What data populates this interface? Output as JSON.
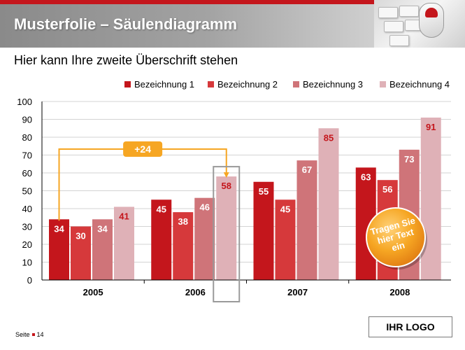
{
  "slide": {
    "title": "Musterfolie – Säulendiagramm",
    "subtitle": "Hier kann Ihre zweite Überschrift stehen",
    "page_label": "Seite",
    "page_number": "14",
    "logo_text": "IHR LOGO"
  },
  "colors": {
    "accent": "#c4161c",
    "series": [
      "#c4161c",
      "#d6393b",
      "#cf7479",
      "#dfb1b7"
    ],
    "annotation": "#f6a623"
  },
  "chart_data": {
    "type": "bar",
    "categories": [
      "2005",
      "2006",
      "2007",
      "2008"
    ],
    "series": [
      {
        "name": "Bezeichnung 1",
        "values": [
          34,
          45,
          55,
          63
        ]
      },
      {
        "name": "Bezeichnung 2",
        "values": [
          30,
          38,
          45,
          56
        ]
      },
      {
        "name": "Bezeichnung 3",
        "values": [
          34,
          46,
          67,
          73
        ]
      },
      {
        "name": "Bezeichnung 4",
        "values": [
          41,
          58,
          85,
          91
        ]
      }
    ],
    "ylim": [
      0,
      100
    ],
    "yticks": [
      0,
      10,
      20,
      30,
      40,
      50,
      60,
      70,
      80,
      90,
      100
    ],
    "grid": true,
    "legend": "top-right",
    "annotations": {
      "difference": {
        "label": "+24",
        "from": {
          "series": 0,
          "category": 0
        },
        "to": {
          "series": 3,
          "category": 1
        }
      },
      "highlight": {
        "series": 3,
        "category": 1
      },
      "callout": {
        "lines": [
          "Tragen Sie",
          "hier Text",
          "ein"
        ]
      }
    }
  }
}
